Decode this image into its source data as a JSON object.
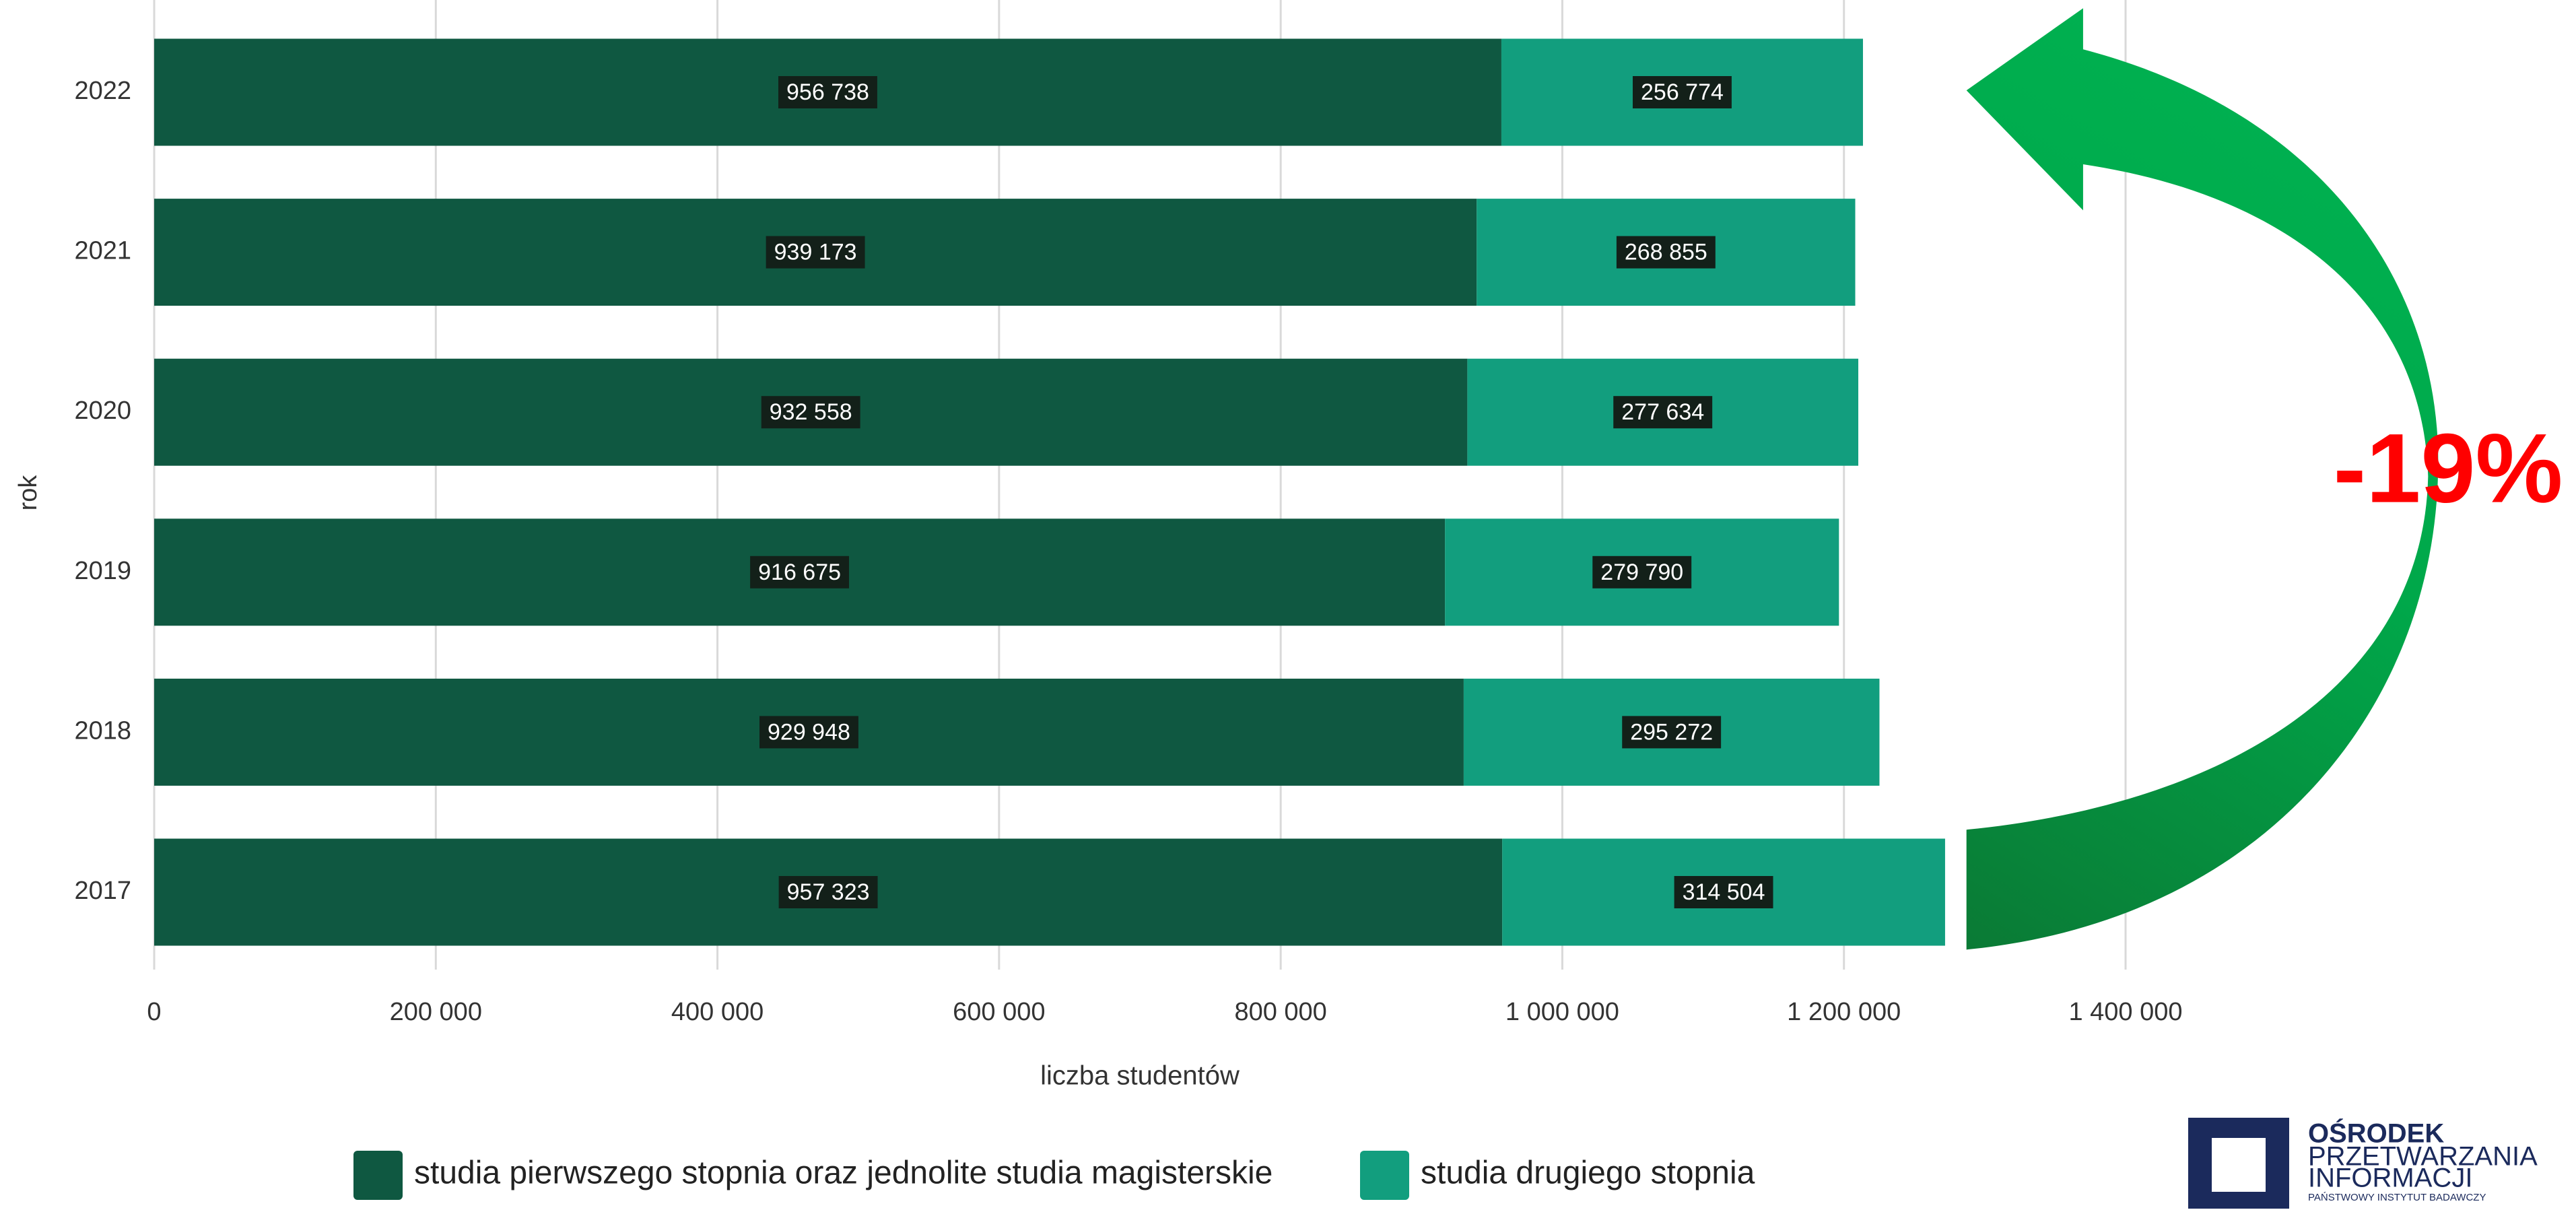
{
  "chart_data": {
    "type": "bar",
    "orientation": "horizontal",
    "stacked": true,
    "categories": [
      "2022",
      "2021",
      "2020",
      "2019",
      "2018",
      "2017"
    ],
    "series": [
      {
        "name": "studia pierwszego stopnia oraz jednolite studia magisterskie",
        "color": "#0f5841",
        "values": [
          956738,
          939173,
          932558,
          916675,
          929948,
          957323
        ],
        "value_labels": [
          "956 738",
          "939 173",
          "932 558",
          "916 675",
          "929 948",
          "957 323"
        ]
      },
      {
        "name": "studia drugiego stopnia",
        "color": "#129e7e",
        "values": [
          256774,
          268855,
          277634,
          279790,
          295272,
          314504
        ],
        "value_labels": [
          "256 774",
          "268 855",
          "277 634",
          "279 790",
          "295 272",
          "314 504"
        ]
      }
    ],
    "xlabel": "liczba studentów",
    "ylabel": "rok",
    "xlim": [
      0,
      1400000
    ],
    "xticks": [
      0,
      {
        "value": 200000,
        "label": "200 000"
      },
      {
        "value": 400000,
        "label": "400 000"
      },
      {
        "value": 600000,
        "label": "600 000"
      },
      {
        "value": 800000,
        "label": "800 000"
      },
      {
        "value": 1000000,
        "label": "1 000 000"
      },
      {
        "value": 1200000,
        "label": "1 200 000"
      },
      {
        "value": 1400000,
        "label": "1 400 000"
      }
    ],
    "grid": true,
    "annotation": "-19%"
  },
  "logo": {
    "lines": [
      "OŚRODEK",
      "PRZETWARZANIA",
      "INFORMACJI"
    ],
    "subtitle": "PAŃSTWOWY INSTYTUT BADAWCZY"
  }
}
